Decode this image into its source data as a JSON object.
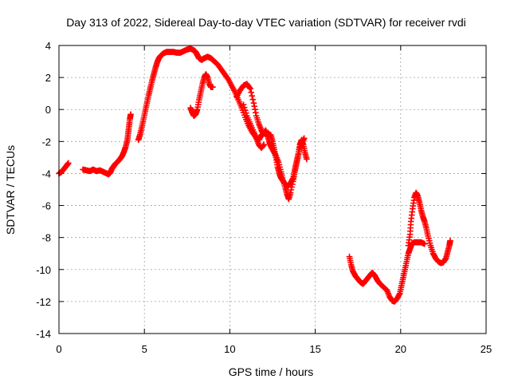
{
  "chart_data": {
    "type": "scatter",
    "title": "Day 313 of 2022, Sidereal Day-to-day VTEC variation (SDTVAR) for receiver rvdi",
    "xlabel": "GPS time / hours",
    "ylabel": "SDTVAR / TECUs",
    "xlim": [
      0,
      25
    ],
    "ylim": [
      -14,
      4
    ],
    "xticks": [
      0,
      5,
      10,
      15,
      20,
      25
    ],
    "yticks": [
      -14,
      -12,
      -10,
      -8,
      -6,
      -4,
      -2,
      0,
      2,
      4
    ],
    "grid": true,
    "marker": "+",
    "color": "#ff0000",
    "series": [
      {
        "name": "seg1",
        "points": [
          [
            0.0,
            -4.0
          ],
          [
            0.15,
            -3.9
          ],
          [
            0.3,
            -3.7
          ],
          [
            0.45,
            -3.5
          ],
          [
            0.55,
            -3.35
          ]
        ]
      },
      {
        "name": "seg2",
        "points": [
          [
            1.4,
            -3.75
          ],
          [
            1.6,
            -3.8
          ],
          [
            1.8,
            -3.85
          ],
          [
            2.0,
            -3.75
          ],
          [
            2.2,
            -3.85
          ],
          [
            2.4,
            -3.8
          ],
          [
            2.6,
            -3.9
          ],
          [
            2.8,
            -4.0
          ],
          [
            2.9,
            -4.05
          ],
          [
            3.0,
            -3.95
          ],
          [
            3.1,
            -3.7
          ],
          [
            3.2,
            -3.55
          ],
          [
            3.3,
            -3.4
          ],
          [
            3.45,
            -3.25
          ],
          [
            3.6,
            -3.05
          ],
          [
            3.7,
            -2.9
          ],
          [
            3.8,
            -2.65
          ],
          [
            3.9,
            -2.35
          ],
          [
            4.0,
            -1.95
          ],
          [
            4.05,
            -1.5
          ],
          [
            4.1,
            -1.05
          ],
          [
            4.15,
            -0.6
          ],
          [
            4.2,
            -0.3
          ]
        ]
      },
      {
        "name": "seg3",
        "points": [
          [
            4.65,
            -1.9
          ],
          [
            4.75,
            -1.55
          ],
          [
            4.85,
            -1.1
          ],
          [
            4.95,
            -0.6
          ],
          [
            5.05,
            -0.1
          ],
          [
            5.15,
            0.4
          ],
          [
            5.25,
            0.9
          ],
          [
            5.35,
            1.35
          ],
          [
            5.45,
            1.8
          ],
          [
            5.55,
            2.2
          ],
          [
            5.65,
            2.6
          ],
          [
            5.75,
            2.95
          ],
          [
            5.85,
            3.2
          ],
          [
            5.95,
            3.35
          ],
          [
            6.1,
            3.5
          ],
          [
            6.3,
            3.6
          ],
          [
            6.5,
            3.6
          ],
          [
            6.7,
            3.6
          ],
          [
            6.9,
            3.55
          ],
          [
            7.1,
            3.55
          ],
          [
            7.3,
            3.65
          ],
          [
            7.5,
            3.75
          ],
          [
            7.7,
            3.8
          ],
          [
            7.9,
            3.7
          ],
          [
            8.0,
            3.6
          ],
          [
            8.1,
            3.4
          ],
          [
            8.2,
            3.2
          ],
          [
            8.35,
            3.1
          ],
          [
            8.5,
            3.2
          ],
          [
            8.7,
            3.3
          ],
          [
            8.9,
            3.2
          ],
          [
            9.1,
            3.0
          ],
          [
            9.3,
            2.8
          ],
          [
            9.5,
            2.5
          ],
          [
            9.7,
            2.2
          ],
          [
            9.9,
            1.9
          ],
          [
            10.1,
            1.5
          ],
          [
            10.3,
            1.1
          ],
          [
            10.5,
            0.6
          ],
          [
            10.7,
            0.1
          ],
          [
            10.9,
            -0.5
          ],
          [
            11.1,
            -1.0
          ],
          [
            11.3,
            -1.4
          ],
          [
            11.5,
            -1.7
          ],
          [
            11.7,
            -1.9
          ],
          [
            11.85,
            -1.6
          ],
          [
            12.0,
            -1.5
          ],
          [
            12.2,
            -1.5
          ],
          [
            12.4,
            -1.6
          ],
          [
            12.5,
            -2.0
          ],
          [
            12.6,
            -2.5
          ],
          [
            12.7,
            -3.0
          ],
          [
            12.8,
            -3.6
          ],
          [
            12.9,
            -4.0
          ],
          [
            13.0,
            -4.3
          ],
          [
            13.2,
            -4.6
          ],
          [
            13.4,
            -4.8
          ],
          [
            13.55,
            -4.6
          ],
          [
            13.7,
            -4.3
          ],
          [
            13.8,
            -3.8
          ],
          [
            13.9,
            -3.3
          ],
          [
            14.0,
            -2.8
          ],
          [
            14.1,
            -2.2
          ],
          [
            14.2,
            -1.9
          ],
          [
            14.3,
            -2.2
          ],
          [
            14.4,
            -2.7
          ],
          [
            14.5,
            -3.1
          ]
        ]
      },
      {
        "name": "seg4",
        "points": [
          [
            7.7,
            0.1
          ],
          [
            7.8,
            -0.2
          ],
          [
            7.9,
            -0.4
          ],
          [
            8.0,
            -0.3
          ],
          [
            8.1,
            0.0
          ],
          [
            8.2,
            0.6
          ],
          [
            8.3,
            1.1
          ],
          [
            8.4,
            1.6
          ],
          [
            8.5,
            2.0
          ],
          [
            8.6,
            2.2
          ],
          [
            8.7,
            2.0
          ],
          [
            8.8,
            1.6
          ],
          [
            8.9,
            1.4
          ],
          [
            9.0,
            1.4
          ]
        ]
      },
      {
        "name": "seg5",
        "points": [
          [
            10.4,
            0.8
          ],
          [
            10.6,
            1.2
          ],
          [
            10.8,
            1.5
          ],
          [
            11.0,
            1.6
          ],
          [
            11.2,
            1.3
          ],
          [
            11.4,
            0.4
          ],
          [
            11.55,
            -0.4
          ],
          [
            11.7,
            -0.9
          ],
          [
            11.85,
            -1.3
          ],
          [
            11.95,
            -1.5
          ],
          [
            12.1,
            -1.3
          ],
          [
            12.2,
            -1.6
          ],
          [
            12.3,
            -2.0
          ],
          [
            12.4,
            -2.3
          ],
          [
            12.55,
            -2.6
          ],
          [
            12.7,
            -2.9
          ],
          [
            12.85,
            -3.3
          ],
          [
            13.0,
            -3.9
          ],
          [
            13.1,
            -4.4
          ],
          [
            13.25,
            -4.9
          ],
          [
            13.35,
            -5.3
          ],
          [
            13.45,
            -5.6
          ],
          [
            13.55,
            -5.2
          ],
          [
            13.7,
            -4.5
          ],
          [
            13.8,
            -3.9
          ],
          [
            13.9,
            -3.4
          ],
          [
            14.0,
            -2.9
          ],
          [
            14.1,
            -2.4
          ],
          [
            14.25,
            -2.0
          ],
          [
            14.35,
            -1.8
          ]
        ]
      },
      {
        "name": "seg6",
        "points": [
          [
            10.8,
            0.3
          ],
          [
            11.0,
            -0.4
          ],
          [
            11.2,
            -0.9
          ],
          [
            11.4,
            -1.4
          ],
          [
            11.55,
            -1.8
          ],
          [
            11.7,
            -2.2
          ],
          [
            11.85,
            -2.4
          ],
          [
            12.0,
            -2.2
          ]
        ]
      },
      {
        "name": "seg7",
        "points": [
          [
            17.0,
            -9.2
          ],
          [
            17.1,
            -9.7
          ],
          [
            17.2,
            -10.1
          ],
          [
            17.35,
            -10.4
          ],
          [
            17.5,
            -10.6
          ],
          [
            17.65,
            -10.8
          ],
          [
            17.8,
            -10.9
          ],
          [
            17.95,
            -10.7
          ],
          [
            18.1,
            -10.5
          ],
          [
            18.25,
            -10.3
          ],
          [
            18.35,
            -10.2
          ],
          [
            18.5,
            -10.4
          ],
          [
            18.65,
            -10.7
          ],
          [
            18.8,
            -10.9
          ],
          [
            19.0,
            -11.1
          ],
          [
            19.2,
            -11.3
          ],
          [
            19.35,
            -11.7
          ],
          [
            19.5,
            -11.95
          ],
          [
            19.65,
            -12.0
          ],
          [
            19.8,
            -11.8
          ],
          [
            19.95,
            -11.5
          ],
          [
            20.05,
            -11.0
          ],
          [
            20.15,
            -10.5
          ],
          [
            20.25,
            -10.0
          ],
          [
            20.35,
            -9.5
          ],
          [
            20.45,
            -9.0
          ],
          [
            20.55,
            -8.7
          ],
          [
            20.65,
            -8.4
          ],
          [
            20.8,
            -8.3
          ],
          [
            21.0,
            -8.3
          ],
          [
            21.2,
            -8.3
          ],
          [
            21.4,
            -8.4
          ]
        ]
      },
      {
        "name": "seg8",
        "points": [
          [
            20.45,
            -8.5
          ],
          [
            20.55,
            -7.8
          ],
          [
            20.6,
            -7.0
          ],
          [
            20.7,
            -6.2
          ],
          [
            20.8,
            -5.5
          ],
          [
            20.9,
            -5.2
          ],
          [
            21.0,
            -5.4
          ],
          [
            21.1,
            -5.8
          ],
          [
            21.2,
            -6.3
          ],
          [
            21.3,
            -6.7
          ],
          [
            21.4,
            -7.0
          ],
          [
            21.5,
            -7.4
          ],
          [
            21.6,
            -7.9
          ],
          [
            21.75,
            -8.5
          ],
          [
            21.9,
            -9.0
          ],
          [
            22.05,
            -9.3
          ],
          [
            22.2,
            -9.5
          ],
          [
            22.35,
            -9.6
          ],
          [
            22.5,
            -9.55
          ],
          [
            22.65,
            -9.3
          ],
          [
            22.75,
            -8.9
          ],
          [
            22.85,
            -8.5
          ],
          [
            22.9,
            -8.2
          ]
        ]
      }
    ]
  }
}
